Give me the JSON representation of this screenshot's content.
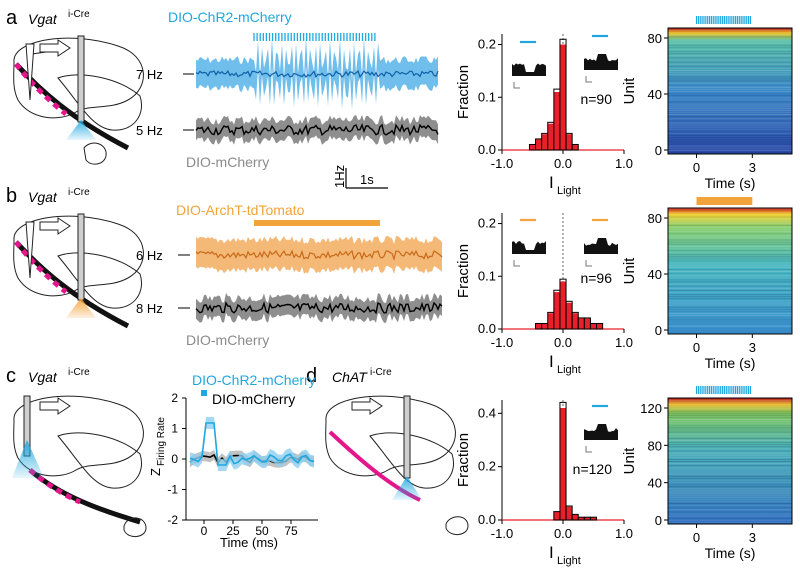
{
  "panels": {
    "a": {
      "letter": "a",
      "genotype": "Vgat",
      "genotype_sup": "i-Cre",
      "opsin_label": "DIO-ChR2-mCherry",
      "opsin_rate": "7 Hz",
      "control_rate": "5 Hz",
      "control_label": "DIO-mCherry",
      "scale_y": "1Hz",
      "scale_x": "1s",
      "hist": {
        "ylabel": "Fraction",
        "xlabel": "I",
        "xlabel_sub": "Light",
        "n_label": "n=90",
        "yticks": [
          "0.0",
          "0.1",
          "0.2"
        ],
        "xticks": [
          "-1.0",
          "0.0",
          "1.0"
        ]
      },
      "heatmap": {
        "ylabel": "Unit",
        "xlabel": "Time (s)",
        "yticks": [
          "0",
          "40",
          "80"
        ],
        "xticks": [
          "0",
          "3"
        ]
      }
    },
    "b": {
      "letter": "b",
      "genotype": "Vgat",
      "genotype_sup": "i-Cre",
      "opsin_label": "DIO-ArchT-tdTomato",
      "opsin_rate": "6 Hz",
      "control_rate": "8 Hz",
      "control_label": "DIO-mCherry",
      "hist": {
        "ylabel": "Fraction",
        "xlabel": "I",
        "xlabel_sub": "Light",
        "n_label": "n=96",
        "yticks": [
          "0.0",
          "0.1",
          "0.2"
        ],
        "xticks": [
          "-1.0",
          "0.0",
          "1.0"
        ]
      },
      "heatmap": {
        "ylabel": "Unit",
        "xlabel": "Time (s)",
        "yticks": [
          "0",
          "40",
          "80"
        ],
        "xticks": [
          "0",
          "3"
        ]
      }
    },
    "c": {
      "letter": "c",
      "genotype": "Vgat",
      "genotype_sup": "i-Cre",
      "legend_opsin": "DIO-ChR2-mCherry",
      "legend_control": "DIO-mCherry",
      "ylabel": "Z",
      "ylabel_sub": "Firing Rate",
      "xlabel": "Time (ms)",
      "yticks": [
        "-2",
        "-1",
        "0",
        "1",
        "2"
      ],
      "xticks": [
        "0",
        "25",
        "50",
        "75"
      ]
    },
    "d": {
      "letter": "d",
      "genotype": "ChAT",
      "genotype_sup": "i-Cre",
      "hist": {
        "ylabel": "Fraction",
        "xlabel": "I",
        "xlabel_sub": "Light",
        "n_label": "n=120",
        "yticks": [
          "0.0",
          "0.2",
          "0.4"
        ],
        "xticks": [
          "-1.0",
          "0.0",
          "1.0"
        ]
      },
      "heatmap": {
        "ylabel": "Unit",
        "xlabel": "Time (s)",
        "yticks": [
          "0",
          "40",
          "80",
          "120"
        ],
        "xticks": [
          "0",
          "3"
        ]
      }
    }
  },
  "colors": {
    "blue": "#1fa8e0",
    "orange": "#f2a33a",
    "red": "#e8202a",
    "magenta": "#e4168b",
    "gray": "#8a8a8a"
  },
  "chart_data": [
    {
      "type": "bar",
      "panel": "a",
      "categories": [
        "-0.9",
        "-0.8",
        "-0.7",
        "-0.6",
        "-0.5",
        "-0.4",
        "-0.3",
        "-0.2",
        "-0.1",
        "0.0",
        "0.1",
        "0.2"
      ],
      "series": [
        {
          "values": [
            0.0,
            0.0,
            0.0,
            0.0,
            0.01,
            0.02,
            0.03,
            0.05,
            0.11,
            0.2,
            0.03,
            0.01
          ]
        }
      ],
      "xlim": [
        -1.0,
        1.0
      ],
      "ylim": [
        0,
        0.22
      ]
    },
    {
      "type": "bar",
      "panel": "b",
      "categories": [
        "-0.5",
        "-0.4",
        "-0.3",
        "-0.2",
        "-0.1",
        "0.0",
        "0.1",
        "0.2",
        "0.3",
        "0.4",
        "0.5",
        "0.6"
      ],
      "series": [
        {
          "values": [
            0.0,
            0.01,
            0.01,
            0.03,
            0.07,
            0.09,
            0.05,
            0.03,
            0.02,
            0.02,
            0.01,
            0.01
          ]
        }
      ],
      "xlim": [
        -1.0,
        1.0
      ],
      "ylim": [
        0,
        0.22
      ]
    },
    {
      "type": "bar",
      "panel": "d",
      "categories": [
        "-0.2",
        "-0.1",
        "0.0",
        "0.1",
        "0.2",
        "0.3",
        "0.4",
        "0.5"
      ],
      "series": [
        {
          "values": [
            0.0,
            0.03,
            0.42,
            0.05,
            0.02,
            0.01,
            0.01,
            0.01
          ]
        }
      ],
      "xlim": [
        -1.0,
        1.0
      ],
      "ylim": [
        0,
        0.45
      ]
    }
  ]
}
